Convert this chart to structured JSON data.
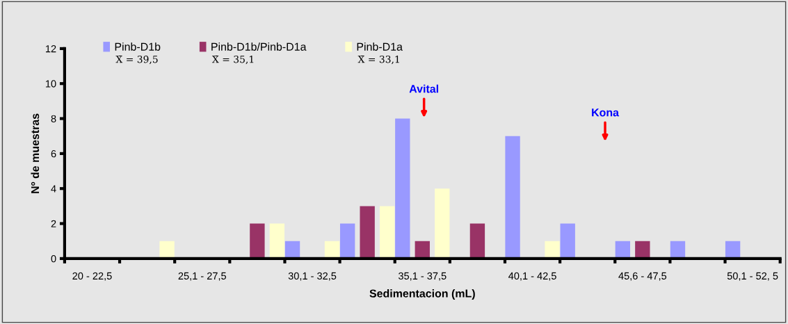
{
  "chart_data": {
    "type": "bar",
    "xlabel": "Sedimentacion (mL)",
    "ylabel": "Nº de muestras",
    "categories": [
      "20 - 22,5",
      null,
      "25,1 - 27,5",
      null,
      "30,1 - 32,5",
      null,
      "35,1 - 37,5",
      null,
      "40,1 - 42,5",
      null,
      "45,6 - 47,5",
      null,
      "50,1 - 52, 5"
    ],
    "series": [
      {
        "name": "Pinb-D1b",
        "color": "#9999ff",
        "values": [
          0,
          0,
          0,
          0,
          1,
          2,
          8,
          0,
          7,
          2,
          1,
          1,
          1
        ]
      },
      {
        "name": "Pinb-D1b/Pinb-D1a",
        "color": "#993366",
        "values": [
          0,
          0,
          0,
          2,
          0,
          3,
          1,
          2,
          0,
          0,
          1,
          0,
          0
        ]
      },
      {
        "name": "Pinb-D1a",
        "color": "#ffffcc",
        "values": [
          0,
          1,
          0,
          2,
          1,
          3,
          4,
          0,
          1,
          0,
          0,
          0,
          0
        ]
      }
    ],
    "ylim": [
      0,
      12
    ],
    "yticks": [
      0,
      2,
      4,
      6,
      8,
      10,
      12
    ],
    "grid": false,
    "legend": "top left",
    "annotations": [
      "X̄ = 39,5",
      "X̄ = 35,1",
      "X̄ = 33,1",
      "Avital",
      "Kona"
    ]
  }
}
